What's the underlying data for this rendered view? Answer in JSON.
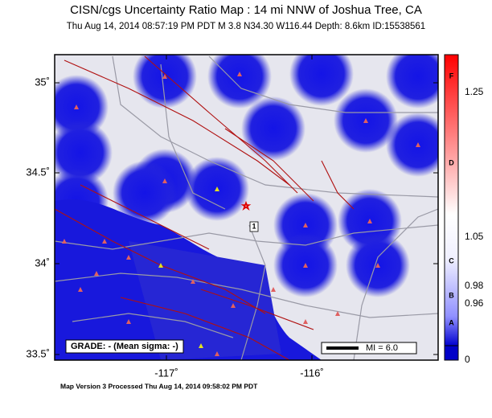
{
  "header": {
    "title": "CISN/cgs Uncertainty Ratio Map : 14 mi NNW of Joshua Tree, CA",
    "subtitle": "Thu Aug 14, 2014 08:57:19 PM PDT   M 3.8   N34.30 W116.44   Depth: 8.6km   ID:15538561"
  },
  "map": {
    "lat_labels": [
      "35˚",
      "34.5˚",
      "34˚",
      "33.5˚"
    ],
    "lon_labels": [
      "-117˚",
      "-116˚"
    ],
    "grade": "GRADE: - (Mean sigma: -)",
    "scale": "MI = 6.0",
    "epicenter_label": "1"
  },
  "colorbar": {
    "labels": [
      "1.25",
      "1.05",
      "0.98",
      "0.96",
      "0"
    ],
    "grades": [
      "F",
      "D",
      "C",
      "B",
      "A"
    ]
  },
  "footer": "Map Version 3 Processed Thu Aug 14, 2014 09:58:02 PM PDT"
}
